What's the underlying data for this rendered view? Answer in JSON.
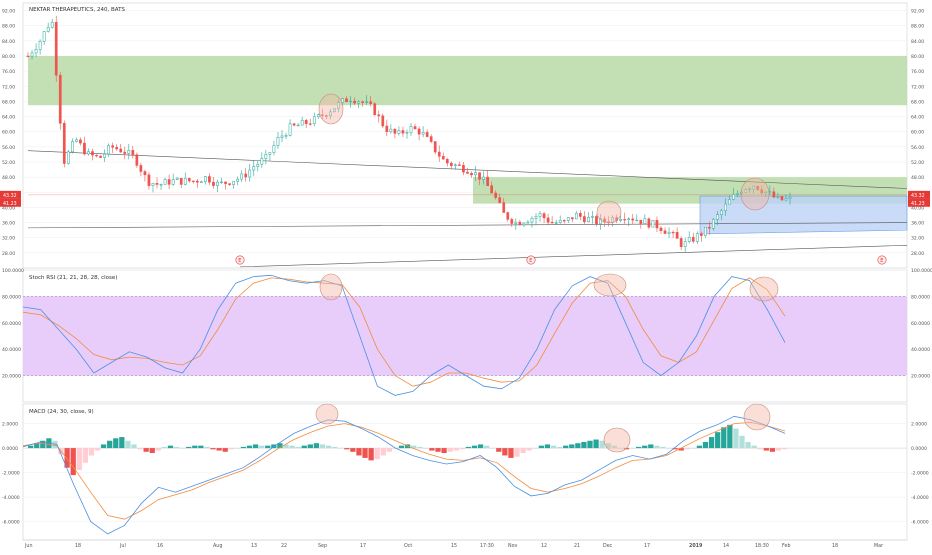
{
  "header": {
    "title": "NEKTAR THERAPEUTICS, 240, BATS"
  },
  "price_labels": {
    "last": "43.32",
    "previous": "41.23"
  },
  "panes": {
    "stoch_title": "Stoch RSI (21, 21, 28, 28, close)",
    "macd_title": "MACD (24, 30, close, 9)"
  },
  "earnings_marker": "E",
  "colors": {
    "background": "#ffffff",
    "grid": "#f0f0f3",
    "up": "#26a69a",
    "down": "#ef5350",
    "supply_zone": "#b7dba6",
    "blue_zone": "#bdd3f7",
    "stoch_band": "#e6c8fb",
    "blue_line": "#4a90e2",
    "orange_line": "#f28b3c",
    "trend": "#555555",
    "ellipse": "#f2b7a8",
    "axis_text": "#555555",
    "price_badge": "#e53935"
  },
  "chart_data": [
    {
      "type": "candlestick",
      "title": "NEKTAR THERAPEUTICS, 240, BATS",
      "ylim": [
        24,
        94
      ],
      "y_ticks": [
        "92.00",
        "88.00",
        "84.00",
        "80.00",
        "76.00",
        "72.00",
        "68.00",
        "64.00",
        "60.00",
        "56.00",
        "52.00",
        "48.00",
        "44.00",
        "40.00",
        "36.00",
        "32.00",
        "28.00"
      ],
      "x_ticks": [
        "Jun",
        "18",
        "Jul",
        "16",
        "Aug",
        "13",
        "22",
        "Sep",
        "17",
        "Oct",
        "15",
        "17:30",
        "Nov",
        "12",
        "21",
        "Dec",
        "17",
        "2019",
        "14",
        "18:30",
        "Feb",
        "18",
        "Mar"
      ],
      "price_path": [
        [
          0,
          80
        ],
        [
          1,
          84
        ],
        [
          2,
          90
        ],
        [
          3,
          52
        ],
        [
          4,
          58
        ],
        [
          5,
          54
        ],
        [
          6,
          53
        ],
        [
          7,
          56
        ],
        [
          8,
          55
        ],
        [
          9,
          53
        ],
        [
          10,
          47
        ],
        [
          11,
          46
        ],
        [
          12,
          47
        ],
        [
          13,
          47
        ],
        [
          14,
          47
        ],
        [
          15,
          48
        ],
        [
          16,
          46
        ],
        [
          17,
          47
        ],
        [
          18,
          48
        ],
        [
          19,
          51
        ],
        [
          20,
          53
        ],
        [
          21,
          58
        ],
        [
          22,
          61
        ],
        [
          23,
          62
        ],
        [
          24,
          63
        ],
        [
          25,
          65
        ],
        [
          26,
          67
        ],
        [
          27,
          69
        ],
        [
          28,
          68
        ],
        [
          29,
          66
        ],
        [
          30,
          61
        ],
        [
          31,
          59
        ],
        [
          32,
          61
        ],
        [
          33,
          60
        ],
        [
          34,
          56
        ],
        [
          35,
          52
        ],
        [
          36,
          51
        ],
        [
          37,
          50
        ],
        [
          38,
          48
        ],
        [
          39,
          44
        ],
        [
          40,
          38
        ],
        [
          41,
          36
        ],
        [
          42,
          37
        ],
        [
          43,
          38
        ],
        [
          44,
          36
        ],
        [
          45,
          36
        ],
        [
          46,
          38
        ],
        [
          47,
          37
        ],
        [
          48,
          36
        ],
        [
          49,
          37
        ],
        [
          50,
          38
        ],
        [
          51,
          37
        ],
        [
          52,
          36
        ],
        [
          53,
          35
        ],
        [
          54,
          33
        ],
        [
          55,
          30
        ],
        [
          56,
          32
        ],
        [
          57,
          34
        ],
        [
          58,
          38
        ],
        [
          59,
          42
        ],
        [
          60,
          45
        ],
        [
          61,
          46
        ],
        [
          62,
          44
        ],
        [
          63,
          42
        ],
        [
          64,
          42
        ]
      ],
      "supply_zones": [
        {
          "from": 67.0,
          "to": 80.0
        },
        {
          "from": 41.0,
          "to": 48.0
        }
      ],
      "blue_zone": {
        "from": 34.0,
        "to": 43.0
      },
      "current_price": 43.32,
      "previous_close": 41.23
    },
    {
      "type": "line",
      "title": "Stoch RSI (21, 21, 28, 28, close)",
      "ylim": [
        0,
        100
      ],
      "y_ticks": [
        "100.0000",
        "80.0000",
        "60.0000",
        "40.0000",
        "20.0000"
      ],
      "band": [
        20,
        80
      ],
      "series": [
        {
          "values": [
            72,
            70,
            55,
            40,
            22,
            30,
            38,
            34,
            26,
            22,
            40,
            70,
            90,
            95,
            96,
            92,
            90,
            92,
            88,
            50,
            12,
            5,
            8,
            20,
            28,
            20,
            12,
            10,
            18,
            40,
            70,
            88,
            95,
            90,
            60,
            30,
            20,
            30,
            50,
            80,
            95,
            92,
            70,
            45
          ]
        },
        {
          "values": [
            68,
            66,
            58,
            48,
            36,
            32,
            34,
            33,
            30,
            28,
            35,
            55,
            78,
            90,
            94,
            93,
            91,
            90,
            89,
            72,
            40,
            20,
            12,
            15,
            22,
            22,
            18,
            15,
            16,
            28,
            52,
            75,
            90,
            92,
            80,
            55,
            35,
            30,
            38,
            62,
            86,
            94,
            85,
            65
          ]
        }
      ]
    },
    {
      "type": "bar+line",
      "title": "MACD (24, 30, close, 9)",
      "ylim": [
        -7.5,
        3.6
      ],
      "y_ticks": [
        "2.0000",
        "0.0000",
        "-2.0000",
        "-4.0000",
        "-6.0000"
      ],
      "histogram": [
        0.2,
        0.4,
        0.6,
        0.8,
        0.6,
        -0.5,
        -1.6,
        -2.2,
        -1.8,
        -1.2,
        -0.6,
        -0.2,
        0.3,
        0.6,
        0.8,
        0.9,
        0.6,
        0.3,
        -0.1,
        -0.3,
        -0.4,
        -0.2,
        0.1,
        0.2,
        0.1,
        0.0,
        0.1,
        0.2,
        0.2,
        0.1,
        -0.1,
        -0.2,
        -0.3,
        -0.1,
        0.0,
        0.1,
        0.2,
        0.3,
        0.2,
        0.2,
        0.3,
        0.4,
        0.3,
        0.2,
        0.1,
        0.2,
        0.3,
        0.4,
        0.3,
        0.2,
        0.1,
        0.0,
        -0.1,
        -0.3,
        -0.6,
        -0.8,
        -1.0,
        -0.9,
        -0.6,
        -0.3,
        0.0,
        0.2,
        0.3,
        0.2,
        0.1,
        0.0,
        -0.2,
        -0.3,
        -0.4,
        -0.3,
        -0.2,
        -0.1,
        0.1,
        0.2,
        0.3,
        0.2,
        0.0,
        -0.3,
        -0.6,
        -0.8,
        -0.7,
        -0.4,
        -0.2,
        0.0,
        0.2,
        0.3,
        0.2,
        0.1,
        0.2,
        0.3,
        0.4,
        0.5,
        0.6,
        0.7,
        0.6,
        0.4,
        0.2,
        0.0,
        -0.1,
        0.0,
        0.1,
        0.2,
        0.3,
        0.2,
        0.1,
        0.0,
        -0.1,
        -0.2,
        -0.1,
        0.0,
        0.2,
        0.5,
        0.9,
        1.3,
        1.7,
        1.9,
        1.6,
        1.0,
        0.5,
        0.2,
        -0.1,
        -0.2,
        -0.3,
        -0.2,
        -0.1
      ],
      "series": [
        {
          "values": [
            0.1,
            0.5,
            0.3,
            -3.0,
            -6.0,
            -7.0,
            -6.3,
            -4.5,
            -3.2,
            -3.6,
            -3.1,
            -2.6,
            -2.1,
            -1.6,
            -0.7,
            0.3,
            1.2,
            1.8,
            2.3,
            2.2,
            1.6,
            0.9,
            0.0,
            -0.6,
            -1.0,
            -1.3,
            -1.1,
            -0.6,
            -1.6,
            -3.1,
            -3.9,
            -3.7,
            -3.0,
            -2.6,
            -1.8,
            -1.0,
            -0.6,
            -0.9,
            -0.5,
            0.6,
            1.4,
            1.9,
            2.6,
            2.3,
            1.8,
            1.2
          ]
        },
        {
          "values": [
            0.2,
            0.4,
            0.2,
            -1.6,
            -3.6,
            -5.5,
            -5.8,
            -5.1,
            -4.2,
            -3.8,
            -3.4,
            -2.8,
            -2.3,
            -1.8,
            -1.0,
            -0.1,
            0.7,
            1.3,
            1.8,
            2.0,
            1.7,
            1.2,
            0.6,
            0.0,
            -0.5,
            -0.9,
            -1.0,
            -0.8,
            -1.2,
            -2.3,
            -3.3,
            -3.6,
            -3.3,
            -2.9,
            -2.3,
            -1.6,
            -1.0,
            -0.9,
            -0.6,
            0.1,
            0.8,
            1.4,
            2.0,
            2.1,
            1.8,
            1.4
          ]
        }
      ]
    }
  ]
}
